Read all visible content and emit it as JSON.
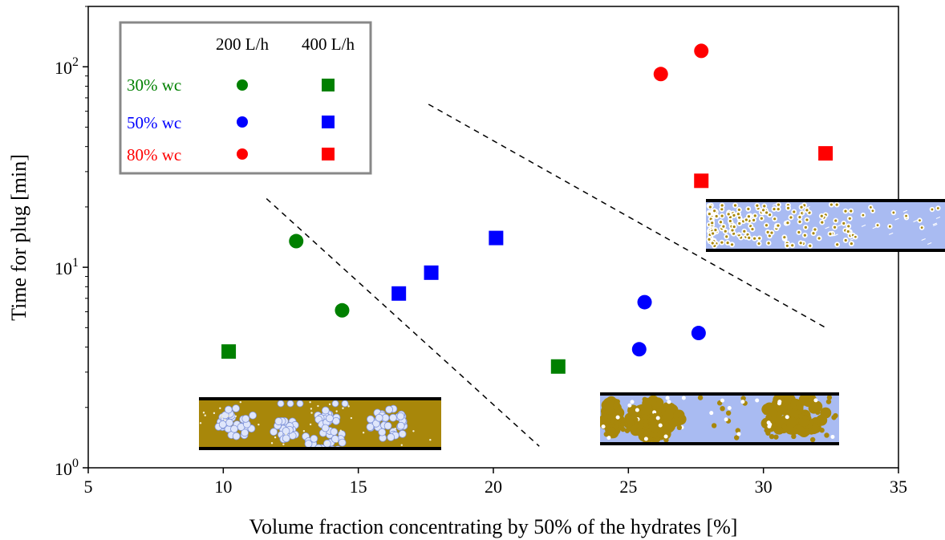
{
  "chart_data": {
    "type": "scatter",
    "xlabel": "Volume fraction concentrating by 50% of the hydrates [%]",
    "ylabel": "Time for plug [min]",
    "x_scale": "linear",
    "y_scale": "log",
    "xlim": [
      5,
      35
    ],
    "ylim": [
      1,
      200
    ],
    "x_ticks": [
      "5",
      "10",
      "15",
      "20",
      "25",
      "30",
      "35"
    ],
    "y_ticks": [
      {
        "base": "10",
        "exp": "0"
      },
      {
        "base": "10",
        "exp": "1"
      },
      {
        "base": "10",
        "exp": "2"
      }
    ],
    "grid": false,
    "legend": {
      "position": "top-left",
      "column_headers": [
        "200 L/h",
        "400 L/h"
      ],
      "rows": [
        "30% wc",
        "50% wc",
        "80% wc"
      ]
    },
    "series": [
      {
        "name": "30% wc",
        "flow": "200 L/h",
        "marker": "circle",
        "color": "#008000",
        "x": [
          12.7,
          14.4
        ],
        "y": [
          13.5,
          6.1
        ]
      },
      {
        "name": "30% wc",
        "flow": "400 L/h",
        "marker": "square",
        "color": "#008000",
        "x": [
          10.2,
          22.4
        ],
        "y": [
          3.8,
          3.2
        ]
      },
      {
        "name": "50% wc",
        "flow": "200 L/h",
        "marker": "circle",
        "color": "#0000ff",
        "x": [
          25.6,
          25.4,
          27.6
        ],
        "y": [
          6.7,
          3.9,
          4.7
        ]
      },
      {
        "name": "50% wc",
        "flow": "400 L/h",
        "marker": "square",
        "color": "#0000ff",
        "x": [
          16.5,
          17.7,
          20.1
        ],
        "y": [
          7.4,
          9.4,
          14
        ]
      },
      {
        "name": "80% wc",
        "flow": "200 L/h",
        "marker": "circle",
        "color": "#ff0000",
        "x": [
          26.2,
          27.7
        ],
        "y": [
          92,
          120
        ]
      },
      {
        "name": "80% wc",
        "flow": "400 L/h",
        "marker": "square",
        "color": "#ff0000",
        "x": [
          27.7,
          32.3
        ],
        "y": [
          27,
          37
        ]
      }
    ],
    "dividers": [
      {
        "style": "dashed",
        "x": [
          11.6,
          21.7
        ],
        "y": [
          22,
          1.28
        ]
      },
      {
        "style": "dashed",
        "x": [
          17.6,
          32.3
        ],
        "y": [
          65,
          5.0
        ]
      }
    ],
    "insets": [
      {
        "name": "oil-continuous-pipe",
        "description": "hydrate aggregates in oil"
      },
      {
        "name": "dispersed-pipe",
        "description": "large hydrate clusters in water"
      },
      {
        "name": "water-continuous-pipe",
        "description": "fine dispersed hydrate particles"
      }
    ],
    "colors": {
      "green": "#008000",
      "blue": "#0000ff",
      "red": "#ff0000",
      "oil": "#a8870a",
      "water": "#a9bbf2",
      "legend_border": "#888888"
    }
  }
}
